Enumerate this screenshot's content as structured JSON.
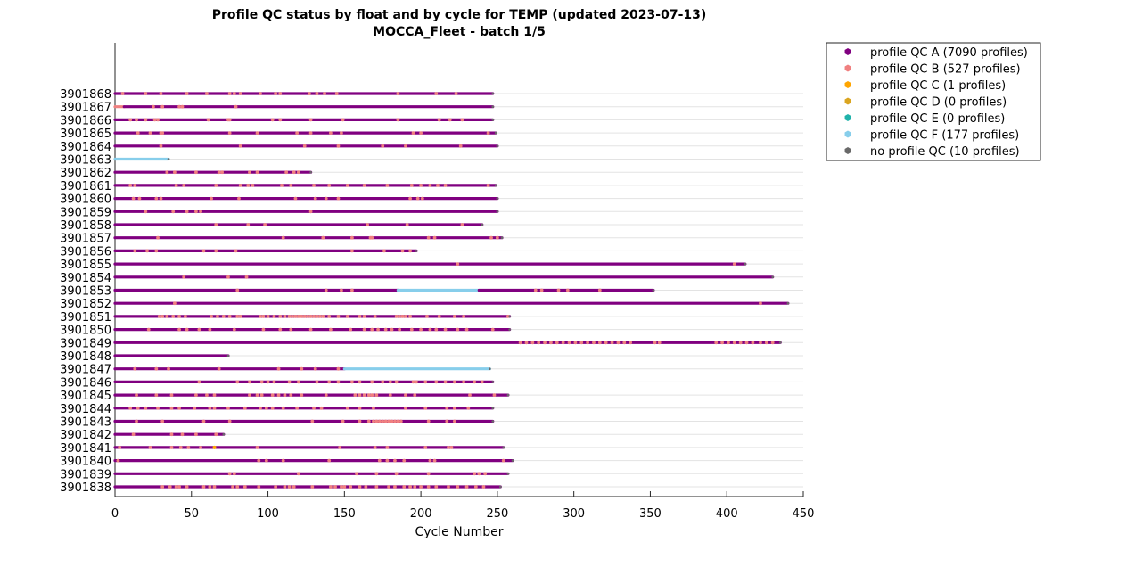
{
  "chart_data": {
    "type": "scatter",
    "title": "Profile QC status by float and by cycle for TEMP (updated 2023-07-13)",
    "subtitle": "MOCCA_Fleet - batch 1/5",
    "xlabel": "Cycle Number",
    "ylabel": "",
    "xlim": [
      0,
      450
    ],
    "xticks": [
      0,
      50,
      100,
      150,
      200,
      250,
      300,
      350,
      400,
      450
    ],
    "grid": "horizontal",
    "legend_position": "top-right outside",
    "legend": [
      {
        "label": "profile QC A (7090 profiles)",
        "color": "#800080"
      },
      {
        "label": "profile QC B (527 profiles)",
        "color": "#f08080"
      },
      {
        "label": "profile QC C (1 profiles)",
        "color": "#ffa500"
      },
      {
        "label": "profile QC D (0 profiles)",
        "color": "#daa520"
      },
      {
        "label": "profile QC E (0 profiles)",
        "color": "#20b2aa"
      },
      {
        "label": "profile QC F (177 profiles)",
        "color": "#87ceeb"
      },
      {
        "label": "no profile QC (10 profiles)",
        "color": "#696969"
      }
    ],
    "floats": [
      {
        "id": "3901868",
        "segments": [
          {
            "from": 0,
            "to": 247,
            "qc": "A"
          }
        ],
        "b_cycles": [
          5,
          20,
          30,
          47,
          60,
          75,
          78,
          82,
          95,
          105,
          108,
          127,
          132,
          137,
          145,
          185,
          210,
          223
        ]
      },
      {
        "id": "3901867",
        "segments": [
          {
            "from": 0,
            "to": 6,
            "qc": "B"
          },
          {
            "from": 6,
            "to": 247,
            "qc": "A"
          }
        ],
        "b_cycles": [
          25,
          31,
          42,
          44,
          79
        ]
      },
      {
        "id": "3901866",
        "segments": [
          {
            "from": 0,
            "to": 247,
            "qc": "A"
          }
        ],
        "b_cycles": [
          10,
          14,
          20,
          26,
          28,
          61,
          74,
          75,
          103,
          108,
          128,
          149,
          185,
          212,
          219,
          227
        ]
      },
      {
        "id": "3901865",
        "segments": [
          {
            "from": 0,
            "to": 249,
            "qc": "A"
          }
        ],
        "b_cycles": [
          15,
          23,
          30,
          31,
          75,
          93,
          119,
          128,
          141,
          148,
          195,
          200,
          244
        ]
      },
      {
        "id": "3901864",
        "segments": [
          {
            "from": 0,
            "to": 250,
            "qc": "A"
          }
        ],
        "b_cycles": [
          30,
          82,
          124,
          146,
          175,
          190,
          226
        ]
      },
      {
        "id": "3901863",
        "segments": [
          {
            "from": 0,
            "to": 35,
            "qc": "F"
          }
        ],
        "b_cycles": []
      },
      {
        "id": "3901862",
        "segments": [
          {
            "from": 0,
            "to": 128,
            "qc": "A"
          }
        ],
        "b_cycles": [
          34,
          39,
          53,
          68,
          70,
          88,
          93,
          112,
          117,
          120
        ]
      },
      {
        "id": "3901861",
        "segments": [
          {
            "from": 0,
            "to": 249,
            "qc": "A"
          }
        ],
        "b_cycles": [
          10,
          13,
          40,
          45,
          66,
          82,
          87,
          90,
          109,
          115,
          130,
          140,
          152,
          163,
          178,
          194,
          200,
          206,
          211,
          216,
          244
        ]
      },
      {
        "id": "3901860",
        "segments": [
          {
            "from": 0,
            "to": 250,
            "qc": "A"
          }
        ],
        "b_cycles": [
          12,
          16,
          27,
          30,
          63,
          81,
          118,
          131,
          138,
          146,
          193,
          198,
          201
        ]
      },
      {
        "id": "3901859",
        "segments": [
          {
            "from": 0,
            "to": 250,
            "qc": "A"
          }
        ],
        "b_cycles": [
          20,
          38,
          47,
          53,
          56,
          128
        ]
      },
      {
        "id": "3901858",
        "segments": [
          {
            "from": 0,
            "to": 240,
            "qc": "A"
          }
        ],
        "b_cycles": [
          66,
          87,
          98,
          165,
          191,
          227
        ]
      },
      {
        "id": "3901857",
        "segments": [
          {
            "from": 0,
            "to": 253,
            "qc": "A"
          }
        ],
        "b_cycles": [
          28,
          110,
          136,
          155,
          167,
          168,
          205,
          209,
          246,
          250
        ]
      },
      {
        "id": "3901856",
        "segments": [
          {
            "from": 0,
            "to": 197,
            "qc": "A"
          }
        ],
        "b_cycles": [
          13,
          21,
          27,
          58,
          66,
          79,
          155,
          176,
          188,
          193
        ]
      },
      {
        "id": "3901855",
        "segments": [
          {
            "from": 0,
            "to": 412,
            "qc": "A"
          }
        ],
        "b_cycles": [
          224,
          405
        ]
      },
      {
        "id": "3901854",
        "segments": [
          {
            "from": 0,
            "to": 430,
            "qc": "A"
          }
        ],
        "b_cycles": [
          45,
          74,
          86
        ]
      },
      {
        "id": "3901853",
        "segments": [
          {
            "from": 0,
            "to": 185,
            "qc": "A"
          },
          {
            "from": 185,
            "to": 238,
            "qc": "F"
          },
          {
            "from": 238,
            "to": 352,
            "qc": "A"
          }
        ],
        "b_cycles": [
          80,
          138,
          148,
          155,
          275,
          279,
          290,
          296,
          317
        ]
      },
      {
        "id": "3901852",
        "segments": [
          {
            "from": 0,
            "to": 440,
            "qc": "A"
          }
        ],
        "b_cycles": [
          39,
          422
        ]
      },
      {
        "id": "3901851",
        "segments": [
          {
            "from": 0,
            "to": 258,
            "qc": "A"
          }
        ],
        "b_cycles": [
          29,
          31,
          34,
          38,
          42,
          46,
          63,
          67,
          71,
          75,
          80,
          82,
          95,
          97,
          100,
          104,
          108,
          111,
          114,
          116,
          118,
          120,
          122,
          124,
          126,
          128,
          130,
          132,
          134,
          136,
          140,
          146,
          152,
          160,
          163,
          170,
          184,
          186,
          188,
          190,
          193,
          204,
          212,
          222,
          228,
          257
        ]
      },
      {
        "id": "3901850",
        "segments": [
          {
            "from": 0,
            "to": 258,
            "qc": "A"
          }
        ],
        "b_cycles": [
          22,
          42,
          47,
          55,
          62,
          78,
          97,
          108,
          115,
          128,
          141,
          154,
          163,
          168,
          172,
          177,
          181,
          186,
          194,
          200,
          206,
          210,
          216,
          224,
          230,
          247
        ]
      },
      {
        "id": "3901849",
        "segments": [
          {
            "from": 0,
            "to": 435,
            "qc": "A"
          }
        ],
        "b_cycles": [
          265,
          269,
          273,
          277,
          281,
          285,
          289,
          293,
          297,
          301,
          305,
          309,
          313,
          317,
          321,
          325,
          329,
          333,
          337,
          353,
          356,
          393,
          397,
          401,
          405,
          409,
          413,
          417,
          422,
          426,
          430
        ]
      },
      {
        "id": "3901848",
        "segments": [
          {
            "from": 0,
            "to": 74,
            "qc": "A"
          }
        ],
        "b_cycles": []
      },
      {
        "id": "3901847",
        "segments": [
          {
            "from": 0,
            "to": 150,
            "qc": "A"
          },
          {
            "from": 150,
            "to": 245,
            "qc": "F"
          }
        ],
        "b_cycles": [
          13,
          27,
          35,
          68,
          107,
          122,
          131,
          146
        ]
      },
      {
        "id": "3901846",
        "segments": [
          {
            "from": 0,
            "to": 247,
            "qc": "A"
          }
        ],
        "b_cycles": [
          55,
          80,
          88,
          96,
          100,
          104,
          114,
          120,
          132,
          140,
          146,
          155,
          160,
          168,
          175,
          180,
          184,
          195,
          197,
          203,
          210,
          216,
          222,
          228,
          235,
          240
        ]
      },
      {
        "id": "3901845",
        "segments": [
          {
            "from": 0,
            "to": 257,
            "qc": "A"
          }
        ],
        "b_cycles": [
          14,
          27,
          37,
          53,
          60,
          65,
          88,
          93,
          96,
          103,
          107,
          111,
          115,
          122,
          138,
          157,
          160,
          163,
          166,
          168,
          171,
          180,
          190,
          196,
          232,
          248
        ]
      },
      {
        "id": "3901844",
        "segments": [
          {
            "from": 0,
            "to": 247,
            "qc": "A"
          }
        ],
        "b_cycles": [
          10,
          15,
          20,
          28,
          37,
          42,
          52,
          62,
          65,
          74,
          85,
          95,
          99,
          103,
          110,
          119,
          130,
          135,
          152,
          160,
          169,
          190,
          203,
          217,
          222,
          231
        ]
      },
      {
        "id": "3901843",
        "segments": [
          {
            "from": 0,
            "to": 247,
            "qc": "A"
          }
        ],
        "b_cycles": [
          14,
          31,
          58,
          75,
          129,
          149,
          160,
          166,
          169,
          171,
          173,
          175,
          177,
          179,
          181,
          183,
          185,
          187,
          205,
          217,
          222
        ]
      },
      {
        "id": "3901842",
        "segments": [
          {
            "from": 0,
            "to": 71,
            "qc": "A"
          }
        ],
        "b_cycles": [
          12,
          37,
          44,
          53,
          66
        ]
      },
      {
        "id": "3901841",
        "segments": [
          {
            "from": 0,
            "to": 254,
            "qc": "A"
          }
        ],
        "b_cycles": [
          3,
          23,
          37,
          43,
          48,
          56,
          93,
          147,
          170,
          178,
          203,
          218,
          220
        ],
        "c_cycles": [
          65
        ]
      },
      {
        "id": "3901840",
        "segments": [
          {
            "from": 0,
            "to": 260,
            "qc": "A"
          }
        ],
        "b_cycles": [
          2,
          94,
          99,
          110,
          140,
          173,
          178,
          183,
          189,
          206,
          209,
          254
        ]
      },
      {
        "id": "3901839",
        "segments": [
          {
            "from": 0,
            "to": 257,
            "qc": "A"
          }
        ],
        "b_cycles": [
          75,
          78,
          120,
          158,
          171,
          184,
          205,
          235,
          238,
          242
        ]
      },
      {
        "id": "3901838",
        "segments": [
          {
            "from": 0,
            "to": 252,
            "qc": "A"
          }
        ],
        "b_cycles": [
          31,
          36,
          40,
          42,
          47,
          58,
          62,
          65,
          77,
          80,
          85,
          94,
          105,
          111,
          114,
          117,
          129,
          141,
          144,
          148,
          150,
          154,
          160,
          164,
          171,
          179,
          183,
          189,
          193,
          196,
          200,
          205,
          210,
          218,
          224,
          230,
          236,
          241
        ]
      }
    ]
  }
}
